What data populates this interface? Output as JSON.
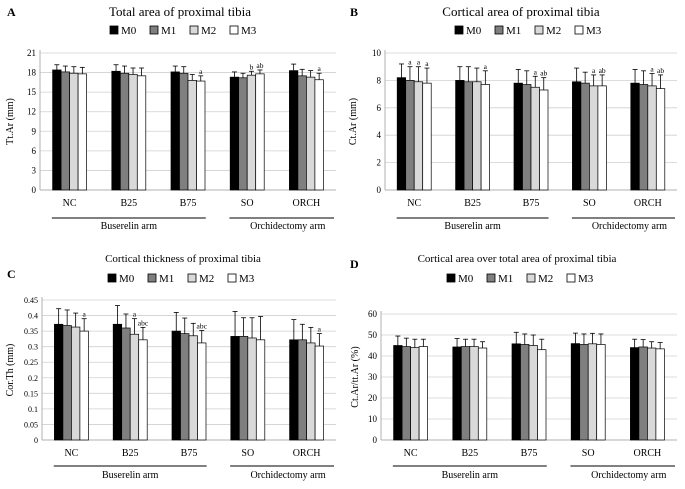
{
  "figure": {
    "group_labels": [
      "Buserelin arm",
      "Orchidectomy arm"
    ]
  },
  "chart_data": [
    {
      "panel": "A",
      "type": "bar",
      "title": "Total area of proximal tibia",
      "ylabel": "Tt.Ar (mm)",
      "xlabel": "",
      "ylim": [
        0,
        21
      ],
      "yticks": [
        0,
        3,
        6,
        9,
        12,
        15,
        18,
        21
      ],
      "ytick_labels": [
        "0",
        "3",
        "6",
        "9",
        "12",
        "15",
        "18",
        "21"
      ],
      "categories": [
        "NC",
        "B25",
        "B75",
        "SO",
        "ORCH"
      ],
      "series": [
        {
          "name": "M0",
          "values": [
            18.4,
            18.2,
            18.1,
            17.3,
            18.3
          ],
          "errors": [
            0.8,
            1.0,
            0.9,
            0.8,
            1.0
          ]
        },
        {
          "name": "M1",
          "values": [
            18.1,
            17.9,
            17.9,
            17.2,
            17.5
          ],
          "errors": [
            0.9,
            1.1,
            1.0,
            0.7,
            1.0
          ]
        },
        {
          "name": "M2",
          "values": [
            17.9,
            17.7,
            16.8,
            17.6,
            17.3
          ],
          "errors": [
            1.0,
            1.0,
            0.9,
            0.6,
            1.0
          ]
        },
        {
          "name": "M3",
          "values": [
            17.8,
            17.5,
            16.7,
            17.8,
            16.9
          ],
          "errors": [
            1.0,
            1.2,
            0.8,
            0.6,
            1.0
          ]
        }
      ],
      "annotations": [
        {
          "category": 2,
          "series": 3,
          "text": "a"
        },
        {
          "category": 3,
          "series": 2,
          "text": "b"
        },
        {
          "category": 3,
          "series": 3,
          "text": "ab"
        },
        {
          "category": 4,
          "series": 3,
          "text": "a"
        }
      ],
      "legend": "top"
    },
    {
      "panel": "B",
      "type": "bar",
      "title": "Cortical area of proximal tibia",
      "ylabel": "Ct.Ar (mm)",
      "xlabel": "",
      "ylim": [
        0,
        10
      ],
      "yticks": [
        0,
        2,
        4,
        6,
        8,
        10
      ],
      "ytick_labels": [
        "0",
        "2",
        "4",
        "6",
        "8",
        "10"
      ],
      "categories": [
        "NC",
        "B25",
        "B75",
        "SO",
        "ORCH"
      ],
      "series": [
        {
          "name": "M0",
          "values": [
            8.2,
            8.0,
            7.8,
            7.9,
            7.8
          ],
          "errors": [
            1.0,
            1.0,
            1.0,
            1.0,
            1.0
          ]
        },
        {
          "name": "M1",
          "values": [
            8.0,
            7.9,
            7.7,
            7.8,
            7.7
          ],
          "errors": [
            1.0,
            1.1,
            1.0,
            0.8,
            1.0
          ]
        },
        {
          "name": "M2",
          "values": [
            7.9,
            7.9,
            7.5,
            7.6,
            7.6
          ],
          "errors": [
            1.1,
            1.0,
            0.8,
            0.8,
            0.9
          ]
        },
        {
          "name": "M3",
          "values": [
            7.8,
            7.7,
            7.3,
            7.6,
            7.4
          ],
          "errors": [
            1.1,
            1.0,
            0.9,
            0.8,
            1.0
          ]
        }
      ],
      "annotations": [
        {
          "category": 0,
          "series": 1,
          "text": "a"
        },
        {
          "category": 0,
          "series": 2,
          "text": "a"
        },
        {
          "category": 0,
          "series": 3,
          "text": "a"
        },
        {
          "category": 1,
          "series": 3,
          "text": "a"
        },
        {
          "category": 2,
          "series": 2,
          "text": "a"
        },
        {
          "category": 2,
          "series": 3,
          "text": "ab"
        },
        {
          "category": 3,
          "series": 2,
          "text": "a"
        },
        {
          "category": 3,
          "series": 3,
          "text": "ab"
        },
        {
          "category": 4,
          "series": 2,
          "text": "a"
        },
        {
          "category": 4,
          "series": 3,
          "text": "ab"
        }
      ],
      "legend": "top"
    },
    {
      "panel": "C",
      "type": "bar",
      "title": "Cortical thickness of proximal tibia",
      "ylabel": "Cor.Th (mm)",
      "xlabel": "",
      "ylim": [
        0,
        0.45
      ],
      "yticks": [
        0,
        0.05,
        0.1,
        0.15,
        0.2,
        0.25,
        0.3,
        0.35,
        0.4,
        0.45
      ],
      "ytick_labels": [
        "0",
        "0.05",
        "0.1",
        "0.15",
        "0.2",
        "0.25",
        "0.3",
        "0.35",
        "0.4",
        "0.45"
      ],
      "categories": [
        "NC",
        "B25",
        "B75",
        "SO",
        "ORCH"
      ],
      "series": [
        {
          "name": "M0",
          "values": [
            0.372,
            0.372,
            0.35,
            0.333,
            0.322
          ],
          "errors": [
            0.05,
            0.06,
            0.06,
            0.08,
            0.065
          ]
        },
        {
          "name": "M1",
          "values": [
            0.368,
            0.36,
            0.342,
            0.333,
            0.322
          ],
          "errors": [
            0.05,
            0.045,
            0.05,
            0.06,
            0.05
          ]
        },
        {
          "name": "M2",
          "values": [
            0.363,
            0.34,
            0.335,
            0.328,
            0.312
          ],
          "errors": [
            0.045,
            0.05,
            0.04,
            0.065,
            0.05
          ]
        },
        {
          "name": "M3",
          "values": [
            0.35,
            0.322,
            0.312,
            0.322,
            0.302
          ],
          "errors": [
            0.04,
            0.04,
            0.04,
            0.075,
            0.04
          ]
        }
      ],
      "annotations": [
        {
          "category": 0,
          "series": 3,
          "text": "a"
        },
        {
          "category": 1,
          "series": 2,
          "text": "a"
        },
        {
          "category": 1,
          "series": 3,
          "text": "abc"
        },
        {
          "category": 2,
          "series": 3,
          "text": "abc"
        },
        {
          "category": 4,
          "series": 3,
          "text": "a"
        }
      ],
      "legend": "top"
    },
    {
      "panel": "D",
      "type": "bar",
      "title": "Cortical area  over total area of proximal tibia",
      "ylabel": "Ct.Ar/tt.Ar (%)",
      "xlabel": "",
      "ylim": [
        0,
        60
      ],
      "yticks": [
        0,
        10,
        20,
        30,
        40,
        50,
        60
      ],
      "ytick_labels": [
        "0",
        "10",
        "20",
        "30",
        "40",
        "50",
        "60"
      ],
      "categories": [
        "NC",
        "B25",
        "B75",
        "SO",
        "ORCH"
      ],
      "series": [
        {
          "name": "M0",
          "values": [
            45.0,
            44.3,
            45.8,
            45.9,
            44.0
          ],
          "errors": [
            4.5,
            4.0,
            5.5,
            5.0,
            4.0
          ]
        },
        {
          "name": "M1",
          "values": [
            44.5,
            44.5,
            45.5,
            45.5,
            44.3
          ],
          "errors": [
            4.0,
            3.5,
            5.0,
            5.0,
            3.5
          ]
        },
        {
          "name": "M2",
          "values": [
            44.0,
            44.5,
            45.0,
            45.8,
            43.8
          ],
          "errors": [
            4.0,
            3.5,
            5.0,
            5.0,
            3.0
          ]
        },
        {
          "name": "M3",
          "values": [
            44.5,
            43.8,
            43.0,
            45.5,
            43.4
          ],
          "errors": [
            3.5,
            3.0,
            5.0,
            5.0,
            3.0
          ]
        }
      ],
      "annotations": [],
      "legend": "top"
    }
  ],
  "colors": {
    "M0": "#000000",
    "M1": "#7f7f7f",
    "M2": "#d9d9d9",
    "M3": "#ffffff",
    "axis": "#b0b0b0",
    "grid": "#d0d0d0"
  }
}
